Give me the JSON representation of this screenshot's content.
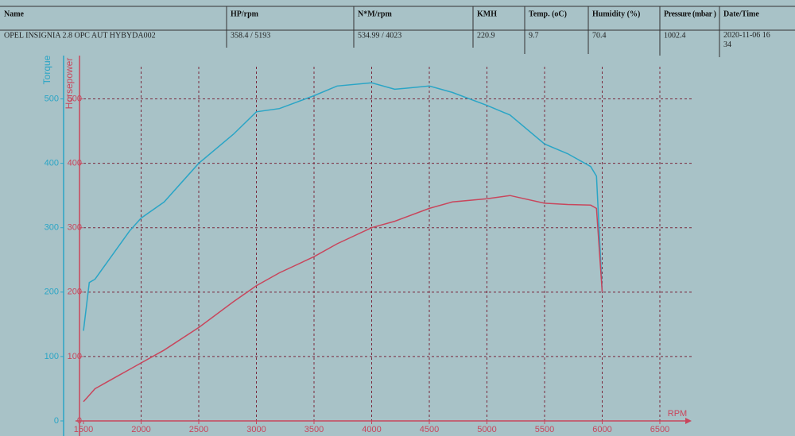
{
  "table": {
    "columns": [
      "Name",
      "HP/rpm",
      "N*M/rpm",
      "KMH",
      "Temp. (oC)",
      "Humidity (%)",
      "Pressure (mbar )",
      "Date/Time"
    ],
    "row": [
      "OPEL INSIGNIA 2.8 OPC AUT HYBYDA002",
      "358.4 / 5193",
      "534.99 / 4023",
      "220.9",
      "9.7",
      "70.4",
      "1002.4",
      "2020-11-06 16 34"
    ]
  },
  "chart_data": {
    "type": "line",
    "x_label": "RPM",
    "y_label": "Torque",
    "y2_label": "Horsepower",
    "x": [
      1500,
      1550,
      1600,
      1700,
      1800,
      1900,
      2000,
      2200,
      2500,
      2800,
      3000,
      3200,
      3500,
      3700,
      4000,
      4200,
      4500,
      4700,
      5000,
      5200,
      5500,
      5700,
      5900,
      5950,
      6000
    ],
    "series": [
      {
        "name": "Torque",
        "color": "#2aa5c6",
        "values": [
          140,
          215,
          220,
          245,
          270,
          295,
          315,
          340,
          400,
          445,
          480,
          485,
          505,
          520,
          525,
          515,
          520,
          510,
          490,
          475,
          430,
          415,
          395,
          380,
          200
        ]
      },
      {
        "name": "Horsepower",
        "color": "#c8465c",
        "axis": "y2",
        "values": [
          30,
          40,
          50,
          60,
          70,
          80,
          90,
          110,
          145,
          185,
          210,
          230,
          255,
          275,
          300,
          310,
          330,
          340,
          345,
          350,
          338,
          336,
          335,
          330,
          200
        ]
      }
    ],
    "xlim": [
      1500,
      6500
    ],
    "xticks": [
      1500,
      2000,
      2500,
      3000,
      3500,
      4000,
      4500,
      5000,
      5500,
      6000,
      6500
    ],
    "ylim": [
      0,
      550
    ],
    "yticks": [
      0,
      100,
      200,
      300,
      400,
      500
    ],
    "y2lim": [
      0,
      550
    ],
    "y2ticks": [
      0,
      100,
      200,
      300,
      400,
      500
    ],
    "grid": true
  }
}
